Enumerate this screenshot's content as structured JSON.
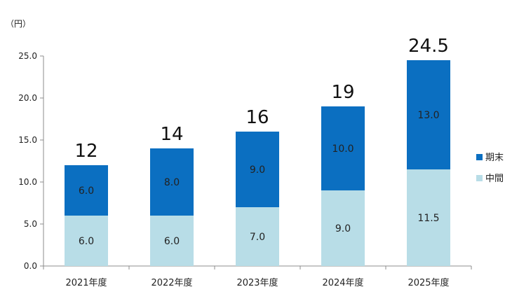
{
  "chart_data": {
    "type": "bar",
    "stacked": true,
    "unit_label": "（円）",
    "categories": [
      "2021年度",
      "2022年度",
      "2023年度",
      "2024年度",
      "2025年度"
    ],
    "series": [
      {
        "name": "中間",
        "values": [
          6.0,
          6.0,
          7.0,
          9.0,
          11.5
        ],
        "labels": [
          "6.0",
          "6.0",
          "7.0",
          "9.0",
          "11.5"
        ],
        "color": "#b8dde7"
      },
      {
        "name": "期末",
        "values": [
          6.0,
          8.0,
          9.0,
          10.0,
          13.0
        ],
        "labels": [
          "6.0",
          "8.0",
          "9.0",
          "10.0",
          "13.0"
        ],
        "color": "#0b6fc1"
      }
    ],
    "totals": [
      "12",
      "14",
      "16",
      "19",
      "24.5"
    ],
    "total_values": [
      12,
      14,
      16,
      19,
      24.5
    ],
    "ylim": [
      0,
      25
    ],
    "yticks": [
      "0.0",
      "5.0",
      "10.0",
      "15.0",
      "20.0",
      "25.0"
    ],
    "ytick_values": [
      0,
      5,
      10,
      15,
      20,
      25
    ],
    "grid": false,
    "legend": "right",
    "legend_order": [
      "期末",
      "中間"
    ]
  }
}
